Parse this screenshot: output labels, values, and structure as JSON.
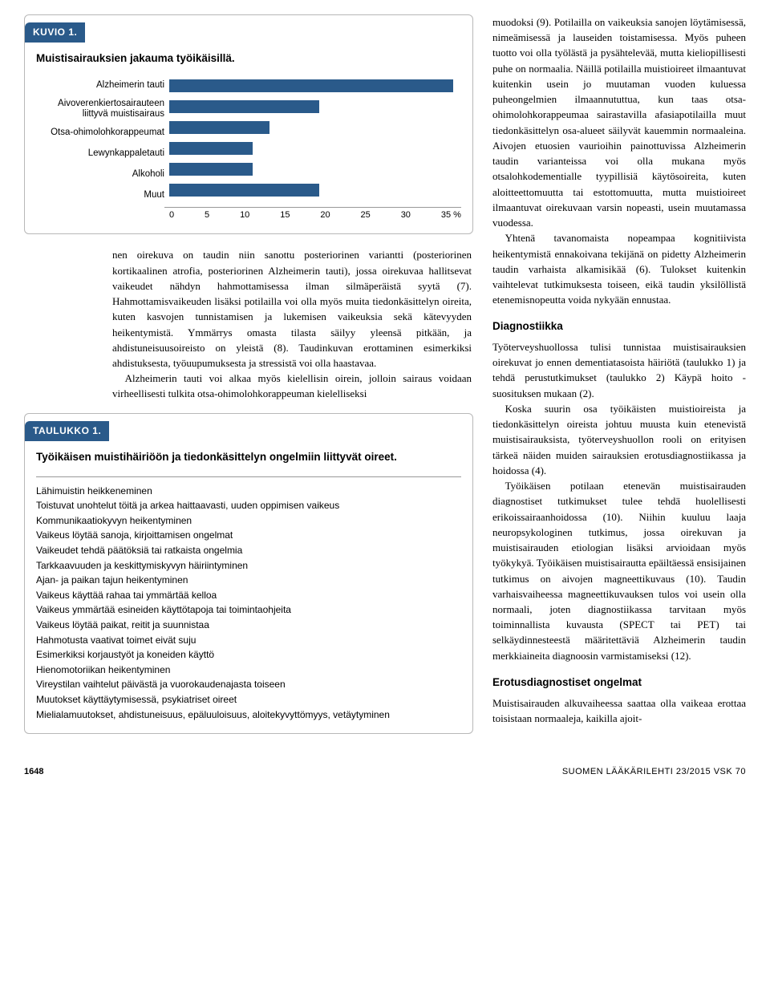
{
  "kuvio1": {
    "head": "KUVIO 1.",
    "title": "Muistisairauksien jakauma työikäisillä.",
    "categories": [
      "Alzheimerin tauti",
      "Aivoverenkiertosairauteen liittyvä muistisairaus",
      "Otsa-ohimolohkorappeumat",
      "Lewynkappaletauti",
      "Alkoholi",
      "Muut"
    ],
    "values": [
      34,
      18,
      12,
      10,
      10,
      18
    ],
    "bar_color": "#2a5a8a",
    "xlim": [
      0,
      35
    ],
    "xtick_step": 5,
    "xtick_suffix_last": " %",
    "background_color": "#ffffff",
    "label_fontsize": 11.5,
    "axis_fontsize": 11
  },
  "left_body": {
    "p1": "nen oirekuva on taudin niin sanottu posteriorinen variantti (posteriorinen kortikaalinen atrofia, posteriorinen Alzheimerin tauti), jossa oirekuvaa hallitsevat vaikeudet nähdyn hahmottamisessa ilman silmäperäistä syytä (7). Hahmottamisvaikeuden lisäksi potilailla voi olla myös muita tiedonkäsittelyn oireita, kuten kasvojen tunnistamisen ja lukemisen vaikeuksia sekä kätevyyden heikentymistä. Ymmärrys omasta tilasta säilyy yleensä pitkään, ja ahdistuneisuusoireisto on yleistä (8). Taudinkuvan erottaminen esimerkiksi ahdistuksesta, työuupumuksesta ja stressistä voi olla haastavaa.",
    "p2": "Alzheimerin tauti voi alkaa myös kielellisin oirein, jolloin sairaus voidaan virheellisesti tulkita otsa-ohimolohkorappeuman kielelliseksi"
  },
  "taulukko1": {
    "head": "TAULUKKO 1.",
    "title": "Työikäisen muistihäiriöön ja tiedonkäsittelyn ongelmiin liittyvät oireet.",
    "items": [
      "Lähimuistin heikkeneminen",
      "Toistuvat unohtelut töitä ja arkea haittaavasti, uuden oppimisen vaikeus",
      "Kommunikaatiokyvyn heikentyminen",
      "Vaikeus löytää sanoja, kirjoittamisen ongelmat",
      "Vaikeudet tehdä päätöksiä tai ratkaista ongelmia",
      "Tarkkaavuuden ja keskittymiskyvyn häiriintyminen",
      "Ajan- ja paikan tajun heikentyminen",
      "Vaikeus käyttää rahaa tai ymmärtää kelloa",
      "Vaikeus ymmärtää esineiden käyttötapoja tai toimintaohjeita",
      "Vaikeus löytää paikat, reitit ja suunnistaa",
      "Hahmotusta vaativat toimet eivät suju",
      "Esimerkiksi korjaustyöt ja koneiden käyttö",
      "Hienomotoriikan heikentyminen",
      "Vireystilan vaihtelut päivästä ja vuorokaudenajasta toiseen",
      "Muutokset käyttäytymisessä, psykiatriset oireet",
      "Mielialamuutokset, ahdistuneisuus, epäluuloisuus, aloitekyvyttömyys, vetäytyminen"
    ]
  },
  "right_body": {
    "p1": "muodoksi (9). Potilailla on vaikeuksia sanojen löytämisessä, nimeämisessä ja lauseiden toistamisessa. Myös puheen tuotto voi olla työlästä ja pysähtelevää, mutta kieliopillisesti puhe on normaalia. Näillä potilailla muistioireet ilmaantuvat kuitenkin usein jo muutaman vuoden kuluessa puheongelmien ilmaannututtua, kun taas otsa-ohimolohkorappeumaa sairastavilla afasiapotilailla muut tiedonkäsittelyn osa-alueet säilyvät kauemmin normaaleina. Aivojen etuosien vaurioihin painottuvissa Alzheimerin taudin varianteissa voi olla mukana myös otsalohkodementialle tyypillisiä käytösoireita, kuten aloitteettomuutta tai estottomuutta, mutta muistioireet ilmaantuvat oirekuvaan varsin nopeasti, usein muutamassa vuodessa.",
    "p2": "Yhtenä tavanomaista nopeampaa kognitiivista heikentymistä ennakoivana tekijänä on pidetty Alzheimerin taudin varhaista alkamisikää (6). Tulokset kuitenkin vaihtelevat tutkimuksesta toiseen, eikä taudin yksilöllistä etenemisnopeutta voida nykyään ennustaa.",
    "h1": "Diagnostiikka",
    "p3": "Työterveyshuollossa tulisi tunnistaa muistisairauksien oirekuvat jo ennen dementiatasoista häiriötä (taulukko 1) ja tehdä perustutkimukset (taulukko 2) Käypä hoito -suosituksen mukaan (2).",
    "p4": "Koska suurin osa työikäisten muistioireista ja tiedonkäsittelyn oireista johtuu muusta kuin etenevistä muistisairauksista, työterveyshuollon rooli on erityisen tärkeä näiden muiden sairauksien erotusdiagnostiikassa ja hoidossa (4).",
    "p5": "Työikäisen potilaan etenevän muistisairauden diagnostiset tutkimukset tulee tehdä huolellisesti erikoissairaanhoidossa (10). Niihin kuuluu laaja neuropsykologinen tutkimus, jossa oirekuvan ja muistisairauden etiologian lisäksi arvioidaan myös työkykyä. Työikäisen muistisairautta epäiltäessä ensisijainen tutkimus on aivojen magneettikuvaus (10). Taudin varhaisvaiheessa magneettikuvauksen tulos voi usein olla normaali, joten diagnostiikassa tarvitaan myös toiminnallista kuvausta (SPECT tai PET) tai selkäydinnesteestä määritettäviä Alzheimerin taudin merkkiaineita diagnoosin varmistamiseksi (12).",
    "h2": "Erotusdiagnostiset ongelmat",
    "p6": "Muistisairauden alkuvaiheessa saattaa olla vaikeaa erottaa toisistaan normaaleja, kaikilla ajoit-"
  },
  "footer": {
    "page": "1648",
    "source": "SUOMEN LÄÄKÄRILEHTI 23/2015 VSK 70"
  }
}
